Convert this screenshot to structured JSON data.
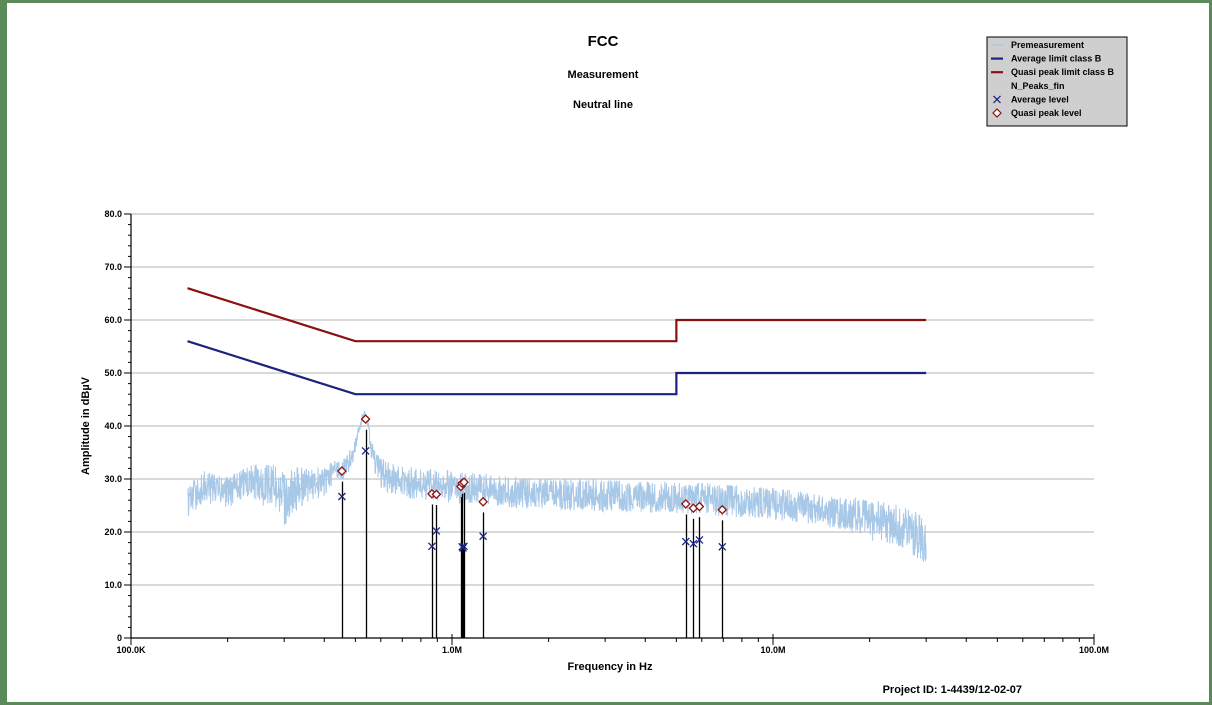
{
  "chart_data": {
    "type": "line",
    "title": "FCC",
    "subtitle_1": "Measurement",
    "subtitle_2": "Neutral line",
    "xlabel": "Frequency in Hz",
    "ylabel": "Amplitude in dBµV",
    "x_scale": "log",
    "xlim": [
      100000,
      100000000
    ],
    "ylim": [
      0,
      80
    ],
    "x_tick_labels": [
      {
        "value": 100000,
        "label": "100.0K"
      },
      {
        "value": 1000000,
        "label": "1.0M"
      },
      {
        "value": 10000000,
        "label": "10.0M"
      },
      {
        "value": 100000000,
        "label": "100.0M"
      }
    ],
    "y_tick_labels": [
      {
        "value": 0,
        "label": "0"
      },
      {
        "value": 10,
        "label": "10.0"
      },
      {
        "value": 20,
        "label": "20.0"
      },
      {
        "value": 30,
        "label": "30.0"
      },
      {
        "value": 40,
        "label": "40.0"
      },
      {
        "value": 50,
        "label": "50.0"
      },
      {
        "value": 60,
        "label": "60.0"
      },
      {
        "value": 70,
        "label": "70.0"
      },
      {
        "value": 80,
        "label": "80.0"
      }
    ],
    "grid": "horizontal",
    "legend_position": "top-right",
    "legend": [
      {
        "label": "Premeasurement",
        "symbol": "line",
        "color": "#a8c8e8"
      },
      {
        "label": "Average limit class B",
        "symbol": "line",
        "color": "#1a237e"
      },
      {
        "label": "Quasi peak limit class B",
        "symbol": "line",
        "color": "#8b1010"
      },
      {
        "label": "N_Peaks_fin",
        "symbol": "none",
        "color": "#000000"
      },
      {
        "label": "Average level",
        "symbol": "x",
        "color": "#1a237e"
      },
      {
        "label": "Quasi peak level",
        "symbol": "diamond",
        "color": "#8b1010"
      }
    ],
    "series": [
      {
        "name": "Average limit class B",
        "color": "#1a237e",
        "x": [
          150000,
          500000,
          5000000,
          5000000,
          30000000
        ],
        "y": [
          56,
          46,
          46,
          50,
          50
        ]
      },
      {
        "name": "Quasi peak limit class B",
        "color": "#8b1010",
        "x": [
          150000,
          500000,
          5000000,
          5000000,
          30000000
        ],
        "y": [
          66,
          56,
          56,
          60,
          60
        ]
      },
      {
        "name": "Average level",
        "color": "#1a237e",
        "x": [
          454000,
          538000,
          866000,
          894000,
          1076000,
          1082000,
          1090000,
          1250000,
          5350000,
          5650000,
          5900000,
          6950000
        ],
        "y": [
          26.7,
          35.3,
          17.3,
          20.2,
          17.2,
          17.0,
          17.3,
          19.2,
          18.2,
          17.8,
          18.5,
          17.2
        ]
      },
      {
        "name": "Quasi peak level",
        "color": "#8b1010",
        "x": [
          454000,
          538000,
          866000,
          894000,
          1066000,
          1076000,
          1090000,
          1250000,
          5350000,
          5650000,
          5900000,
          6950000
        ],
        "y": [
          31.5,
          41.3,
          27.2,
          27.1,
          28.6,
          29.2,
          29.4,
          25.7,
          25.3,
          24.5,
          24.8,
          24.2
        ]
      },
      {
        "name": "Premeasurement",
        "color": "#a8c8e8",
        "x": [
          150000,
          170000,
          200000,
          230000,
          260000,
          280000,
          300000,
          330000,
          360000,
          400000,
          430000,
          460000,
          490000,
          510000,
          530000,
          545000,
          560000,
          580000,
          620000,
          700000,
          800000,
          900000,
          1000000,
          1100000,
          1300000,
          1500000,
          2000000,
          2500000,
          3000000,
          4000000,
          5000000,
          6000000,
          7000000,
          8000000,
          10000000,
          13000000,
          16000000,
          20000000,
          25000000,
          30000000
        ],
        "y": [
          25.8,
          28.6,
          27.4,
          29.5,
          28.9,
          29.0,
          26.0,
          28.2,
          29.0,
          29.6,
          31.5,
          31.8,
          34.5,
          38.5,
          42.3,
          41.0,
          36.0,
          32.0,
          30.5,
          29.5,
          29.0,
          28.8,
          28.5,
          28.3,
          28.0,
          27.5,
          27.2,
          27.0,
          26.8,
          26.6,
          26.5,
          26.3,
          26.0,
          25.7,
          25.3,
          24.5,
          23.5,
          22.5,
          21.0,
          19.0
        ],
        "variation": [
          3,
          3,
          3,
          3,
          4,
          4,
          5,
          4,
          3,
          3,
          2,
          2,
          2,
          1,
          1,
          1,
          2,
          3,
          3,
          3,
          3,
          3,
          3,
          3,
          3,
          3,
          3,
          3,
          3,
          3,
          3,
          3,
          3,
          3,
          3,
          3,
          3,
          4,
          4,
          5
        ]
      }
    ],
    "project_id": "Project ID: 1-4439/12-02-07"
  }
}
